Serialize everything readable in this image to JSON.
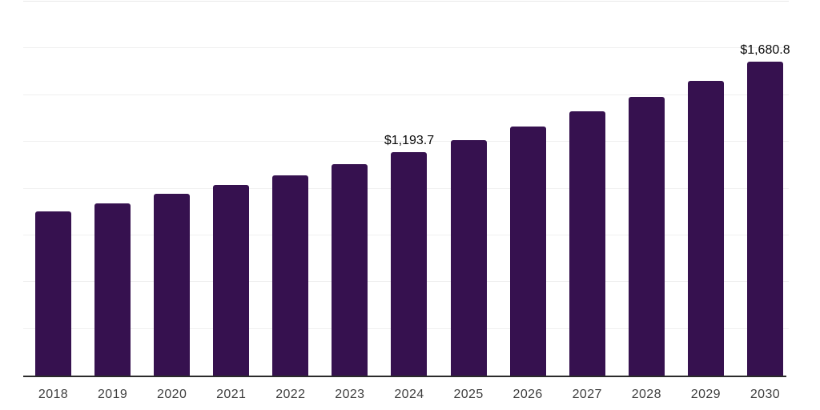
{
  "chart_data": {
    "type": "bar",
    "title": "",
    "xlabel": "",
    "ylabel": "",
    "categories": [
      "2018",
      "2019",
      "2020",
      "2021",
      "2022",
      "2023",
      "2024",
      "2025",
      "2026",
      "2027",
      "2028",
      "2029",
      "2030"
    ],
    "values": [
      878.9,
      921.5,
      971.3,
      1019.7,
      1071.9,
      1132.6,
      1193.7,
      1258.5,
      1332.3,
      1412.1,
      1488.9,
      1574.2,
      1680.8
    ],
    "data_labels": {
      "2024": "$1,193.7",
      "2030": "$1,680.8"
    },
    "ylim": [
      0,
      2000
    ],
    "gridline_step": 250,
    "grid": "horizontal",
    "legend": "none",
    "colors": {
      "bar": "#36114F",
      "axis_line": "#2b2b2b",
      "gridline": "#f0f0f0",
      "top_gridline": "#e8e8e8",
      "value_label": "#0a0a0a",
      "tick_label": "#3f3f3f",
      "background": "#ffffff"
    }
  }
}
